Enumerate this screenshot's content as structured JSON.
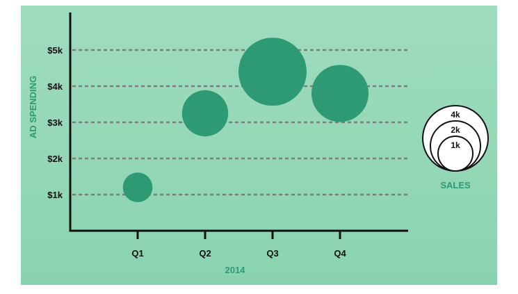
{
  "colors": {
    "panel_top": "#9fdcbf",
    "panel_bottom": "#8ad3b0",
    "bubble": "#2e9a73",
    "axis": "#111111",
    "grid": "#7d7d7d",
    "title": "#2e9a73"
  },
  "chart_data": {
    "type": "bubble",
    "xlabel": "2014",
    "ylabel": "AD SPENDING",
    "categories": [
      "Q1",
      "Q2",
      "Q3",
      "Q4"
    ],
    "y_ticks": [
      1000,
      2000,
      3000,
      4000,
      5000
    ],
    "y_tick_labels": [
      "$1k",
      "$2k",
      "$3k",
      "$4k",
      "$5k"
    ],
    "ylim": [
      0,
      6000
    ],
    "grid": "horizontal dashed",
    "series": [
      {
        "points": [
          {
            "x": "Q1",
            "y": 1200,
            "size": 700
          },
          {
            "x": "Q2",
            "y": 3250,
            "size": 1700
          },
          {
            "x": "Q3",
            "y": 4400,
            "size": 3700
          },
          {
            "x": "Q4",
            "y": 3800,
            "size": 2600
          }
        ]
      }
    ],
    "size_legend": {
      "title": "SALES",
      "placement": "right",
      "entries": [
        {
          "label": "4k",
          "value": 4000
        },
        {
          "label": "2k",
          "value": 2000
        },
        {
          "label": "1k",
          "value": 1000
        }
      ]
    }
  }
}
